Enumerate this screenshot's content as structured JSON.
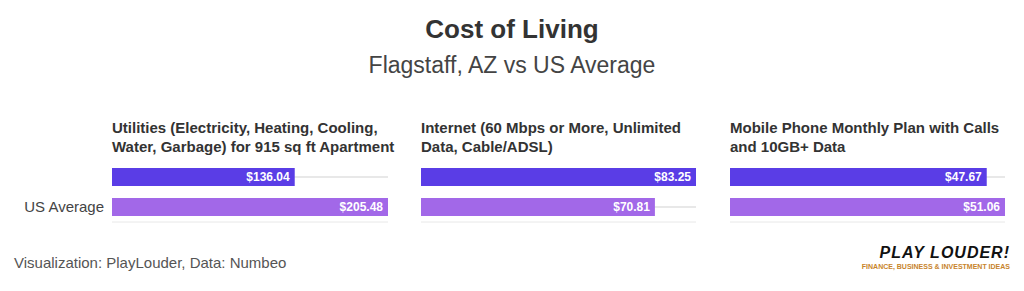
{
  "title": "Cost of Living",
  "subtitle": "Flagstaff, AZ vs US Average",
  "source": "Visualization: PlayLouder, Data: Numbeo",
  "logo": {
    "name": "PLAY LOUDER!",
    "tagline": "FINANCE, BUSINESS & INVESTMENT IDEAS"
  },
  "chart_data": [
    {
      "type": "bar",
      "orientation": "horizontal",
      "title": "Utilities (Electricity, Heating, Cooling, Water, Garbage) for 915 sq ft Apartment",
      "categories": [
        null,
        "US Average"
      ],
      "values": [
        136.04,
        205.48
      ],
      "value_labels": [
        "$136.04",
        "$205.48"
      ],
      "colors": [
        "#5a3de6",
        "#a268e8"
      ],
      "xlim": [
        0,
        205.48
      ],
      "data_labels": true,
      "tick_labels": "y"
    },
    {
      "type": "bar",
      "orientation": "horizontal",
      "title": "Internet (60 Mbps or More, Unlimited Data, Cable/ADSL)",
      "categories": [
        null,
        null
      ],
      "values": [
        83.25,
        70.81
      ],
      "value_labels": [
        "$83.25",
        "$70.81"
      ],
      "colors": [
        "#5a3de6",
        "#a268e8"
      ],
      "xlim": [
        0,
        83.25
      ],
      "data_labels": true,
      "tick_labels": false
    },
    {
      "type": "bar",
      "orientation": "horizontal",
      "title": "Mobile Phone Monthly Plan with Calls and 10GB+ Data",
      "categories": [
        null,
        null
      ],
      "values": [
        47.67,
        51.06
      ],
      "value_labels": [
        "$47.67",
        "$51.06"
      ],
      "colors": [
        "#5a3de6",
        "#a268e8"
      ],
      "xlim": [
        0,
        51.06
      ],
      "data_labels": true,
      "tick_labels": false
    }
  ]
}
